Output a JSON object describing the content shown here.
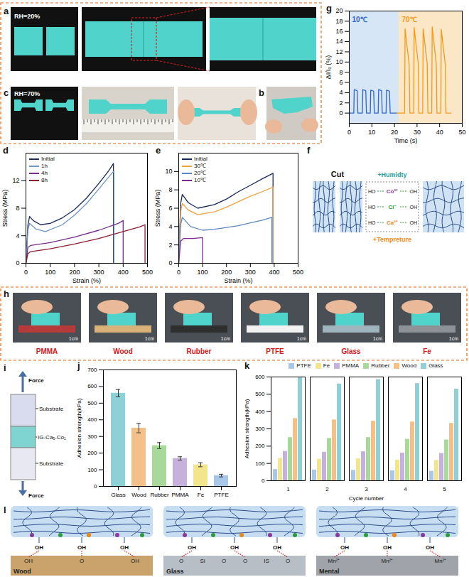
{
  "figure": {
    "a": {
      "panel_label": "a",
      "annotation": "RH=20%"
    },
    "b": {
      "panel_label": "b"
    },
    "c": {
      "panel_label": "c",
      "annotation": "RH=70%"
    },
    "f": {
      "panel_label": "f",
      "cut": "Cut",
      "humidity": "+Humidty",
      "temperature": "+Tempreture",
      "ions": [
        "Co²⁺",
        "Cl⁻",
        "Ca²⁺"
      ],
      "groups": [
        [
          "HO",
          "OH"
        ],
        [
          "HO",
          "OH"
        ],
        [
          "HO",
          "OH"
        ]
      ]
    },
    "h": {
      "panel_label": "h",
      "photos": [
        {
          "label": "PMMA",
          "scale_bar": "1cm"
        },
        {
          "label": "Wood",
          "scale_bar": "1cm"
        },
        {
          "label": "Rubber",
          "scale_bar": "1cm"
        },
        {
          "label": "PTFE",
          "scale_bar": "1cm"
        },
        {
          "label": "Glass",
          "scale_bar": "1cm"
        },
        {
          "label": "Fe",
          "scale_bar": "1cm"
        }
      ]
    },
    "i": {
      "panel_label": "i",
      "force_top": "Force",
      "force_bottom": "Force",
      "layers": [
        "Substrate",
        "IG-Ca₅.Co₁",
        "Substrate"
      ]
    },
    "l": {
      "panel_label": "l",
      "panels": [
        {
          "substrate": "Wood",
          "groups": [
            "OH",
            "OH",
            "OH"
          ],
          "surface": [
            "OH",
            "O",
            "OH"
          ]
        },
        {
          "substrate": "Glass",
          "groups": [
            "OH",
            "OH",
            "OH"
          ],
          "surface": [
            "O",
            "Si",
            "O",
            "O",
            "IS",
            "O"
          ]
        },
        {
          "substrate": "Mental",
          "groups": [
            "OH",
            "OH",
            "OH"
          ],
          "surface": [
            "Mn²⁺",
            "Mn²⁺",
            "Mn²⁺"
          ]
        }
      ]
    }
  },
  "chart_data": [
    {
      "type": "line",
      "panel_label": "d",
      "x_label": "Strain (%)",
      "y_label": "Stress (MPa)",
      "xlim": [
        0,
        500
      ],
      "xticks": [
        0,
        100,
        200,
        300,
        400,
        500
      ],
      "ylim": [
        0,
        16
      ],
      "yticks": [
        0,
        4,
        8,
        12
      ],
      "grid": false,
      "legend": "top-left",
      "series": [
        {
          "name": "Initial",
          "color": "#1b2a5c",
          "x": [
            0,
            8,
            15,
            30,
            60,
            100,
            150,
            200,
            250,
            300,
            340,
            360,
            360
          ],
          "values": [
            0,
            5.5,
            6.8,
            6.2,
            5.6,
            5.8,
            6.6,
            7.8,
            9.5,
            11.6,
            13.4,
            14.5,
            0
          ]
        },
        {
          "name": "1h",
          "color": "#6e95c8",
          "x": [
            0,
            8,
            15,
            40,
            80,
            150,
            200,
            250,
            300,
            340,
            362,
            362
          ],
          "values": [
            0,
            4.8,
            5.8,
            5.0,
            4.6,
            5.6,
            7.0,
            8.7,
            10.8,
            12.5,
            13.4,
            0
          ]
        },
        {
          "name": "4h",
          "color": "#7a2c8e",
          "x": [
            0,
            8,
            20,
            100,
            200,
            300,
            380,
            400,
            400
          ],
          "values": [
            0,
            2.3,
            2.6,
            3.0,
            3.8,
            4.8,
            5.8,
            6.2,
            0
          ]
        },
        {
          "name": "8h",
          "color": "#8c1c2e",
          "x": [
            0,
            8,
            20,
            100,
            200,
            300,
            400,
            470,
            490,
            490
          ],
          "values": [
            0,
            1.4,
            1.7,
            2.1,
            2.8,
            3.6,
            4.6,
            5.3,
            5.6,
            0
          ]
        }
      ]
    },
    {
      "type": "line",
      "panel_label": "e",
      "x_label": "Strain (%)",
      "y_label": "Stress (MPa)",
      "xlim": [
        0,
        500
      ],
      "xticks": [
        0,
        100,
        200,
        300,
        400,
        500
      ],
      "ylim": [
        0,
        12
      ],
      "yticks": [
        0,
        2,
        4,
        6,
        8,
        10
      ],
      "grid": false,
      "legend": "top-left",
      "series": [
        {
          "name": "Initial",
          "color": "#1b2a5c",
          "x": [
            0,
            8,
            15,
            40,
            80,
            150,
            200,
            250,
            300,
            350,
            395,
            395
          ],
          "values": [
            0,
            6.5,
            7.5,
            6.6,
            6.0,
            6.4,
            7.0,
            7.8,
            8.5,
            9.2,
            9.8,
            0
          ]
        },
        {
          "name": "30℃",
          "color": "#f0a040",
          "x": [
            0,
            8,
            15,
            40,
            80,
            150,
            200,
            250,
            300,
            350,
            395,
            395
          ],
          "values": [
            0,
            5.6,
            6.5,
            5.8,
            5.3,
            5.6,
            6.1,
            6.7,
            7.3,
            7.8,
            8.3,
            0
          ]
        },
        {
          "name": "20℃",
          "color": "#5b86c2",
          "x": [
            0,
            8,
            15,
            50,
            100,
            150,
            200,
            250,
            300,
            350,
            390,
            390
          ],
          "values": [
            0,
            4.2,
            5.0,
            4.0,
            3.6,
            3.7,
            3.9,
            4.1,
            4.4,
            4.7,
            5.0,
            0
          ]
        },
        {
          "name": "10℃",
          "color": "#7a2c8e",
          "x": [
            0,
            8,
            20,
            60,
            100,
            100
          ],
          "values": [
            0,
            2.4,
            2.7,
            2.7,
            2.8,
            0
          ]
        }
      ]
    },
    {
      "type": "line",
      "panel_label": "g",
      "x_label": "Time (s)",
      "y_label": "ΔI/I₀ (%)",
      "xlim": [
        0,
        50
      ],
      "xticks": [
        0,
        10,
        20,
        30,
        40,
        50
      ],
      "ylim": [
        -2,
        20
      ],
      "yticks": [
        0,
        2,
        4,
        6,
        8,
        10,
        12,
        14,
        16,
        18,
        20
      ],
      "grid": false,
      "regions": [
        {
          "label": "10℃",
          "from": 0,
          "to": 22,
          "color": "#d6e6f7"
        },
        {
          "label": "70℃",
          "from": 22,
          "to": 50,
          "color": "#fbe7c6"
        }
      ],
      "series": [
        {
          "name": "10℃",
          "color": "#2f66c4",
          "x": [
            0,
            2,
            2.2,
            3.5,
            3.8,
            5.8,
            6,
            7.3,
            7.6,
            9.3,
            9.5,
            10.8,
            11.1,
            12.8,
            13,
            14.3,
            14.6,
            16.3,
            16.5,
            17.8,
            18.1,
            21
          ],
          "values": [
            0,
            0,
            4.6,
            4.4,
            0,
            0,
            4.6,
            4.4,
            0,
            0,
            4.5,
            4.3,
            0,
            0,
            4.6,
            4.4,
            0,
            0,
            4.5,
            4.3,
            0,
            0
          ]
        },
        {
          "name": "70℃",
          "color": "#f29a1e",
          "x": [
            21,
            24.5,
            24.7,
            26.5,
            26.8,
            28.5,
            28.7,
            30.5,
            30.8,
            32.5,
            32.7,
            34.5,
            34.8,
            36.5,
            36.7,
            38.5,
            38.8,
            40.5,
            40.7,
            42.5,
            42.8,
            45
          ],
          "values": [
            0,
            0,
            16.5,
            9.5,
            0,
            0,
            16.8,
            9.8,
            0,
            0,
            16.5,
            9.6,
            0,
            0,
            16.9,
            9.7,
            0,
            0,
            16.4,
            9.5,
            0,
            0
          ]
        }
      ]
    },
    {
      "type": "bar",
      "panel_label": "j",
      "y_label": "Adhesion strength(kPa)",
      "categories": [
        "Glass",
        "Wood",
        "Rubber",
        "PMMA",
        "Fe",
        "PTFE"
      ],
      "values": [
        560,
        350,
        245,
        168,
        130,
        65
      ],
      "errors": [
        22,
        28,
        18,
        10,
        12,
        8
      ],
      "colors": [
        "#8fd0d6",
        "#f4c08a",
        "#a9d99a",
        "#c6b0dc",
        "#f3e58e",
        "#a9c7e8"
      ],
      "ylim": [
        0,
        700
      ],
      "yticks": [
        0,
        100,
        200,
        300,
        400,
        500,
        600,
        700
      ],
      "grid": false
    },
    {
      "type": "bar",
      "panel_label": "k",
      "x_label": "Cycle number",
      "y_label": "Adhesion strength(kPa)",
      "categories": [
        1,
        2,
        3,
        4,
        5
      ],
      "ylim": [
        0,
        600
      ],
      "yticks": [
        0,
        100,
        200,
        300,
        400,
        500,
        600
      ],
      "grid": false,
      "legend": "top",
      "series": [
        {
          "name": "PTFE",
          "color": "#a9c7e8",
          "values": [
            65,
            62,
            60,
            58,
            55
          ]
        },
        {
          "name": "Fe",
          "color": "#f3e58e",
          "values": [
            130,
            125,
            128,
            120,
            118
          ]
        },
        {
          "name": "PMMA",
          "color": "#c6b0dc",
          "values": [
            170,
            165,
            168,
            160,
            158
          ]
        },
        {
          "name": "Rubber",
          "color": "#a9d99a",
          "values": [
            250,
            245,
            250,
            240,
            236
          ]
        },
        {
          "name": "Wood",
          "color": "#f4c08a",
          "values": [
            360,
            352,
            345,
            340,
            332
          ]
        },
        {
          "name": "Glass",
          "color": "#8fd0d6",
          "values": [
            600,
            560,
            585,
            562,
            530
          ]
        }
      ]
    }
  ]
}
